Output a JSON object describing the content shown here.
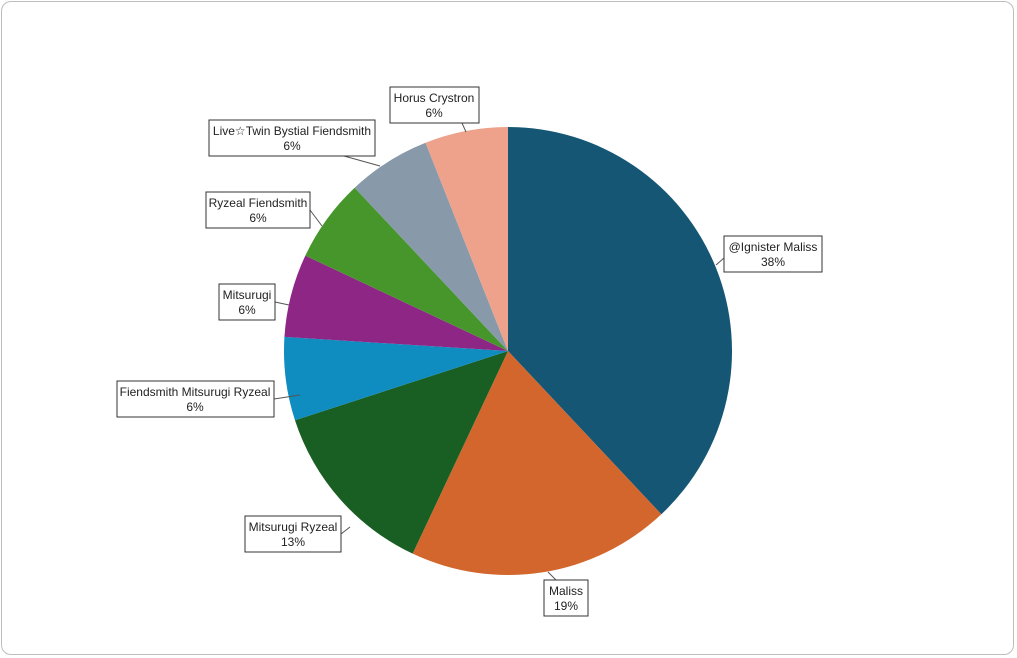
{
  "chart_data": {
    "type": "pie",
    "title": "",
    "start_angle_deg": 0,
    "direction": "clockwise",
    "slices": [
      {
        "label": "@Ignister Maliss",
        "value": 38,
        "pct_label": "38%",
        "color": "#145673"
      },
      {
        "label": "Maliss",
        "value": 19,
        "pct_label": "19%",
        "color": "#d2662d"
      },
      {
        "label": "Mitsurugi Ryzeal",
        "value": 13,
        "pct_label": "13%",
        "color": "#195e22"
      },
      {
        "label": "Fiendsmith Mitsurugi Ryzeal",
        "value": 6,
        "pct_label": "6%",
        "color": "#0f8cc0"
      },
      {
        "label": "Mitsurugi",
        "value": 6,
        "pct_label": "6%",
        "color": "#8e2685"
      },
      {
        "label": "Ryzeal Fiendsmith",
        "value": 6,
        "pct_label": "6%",
        "color": "#46962b"
      },
      {
        "label": "Live☆Twin Bystial Fiendsmith",
        "value": 6,
        "pct_label": "6%",
        "color": "#8899aa"
      },
      {
        "label": "Horus Crystron",
        "value": 6,
        "pct_label": "6%",
        "color": "#eea28c"
      }
    ]
  }
}
